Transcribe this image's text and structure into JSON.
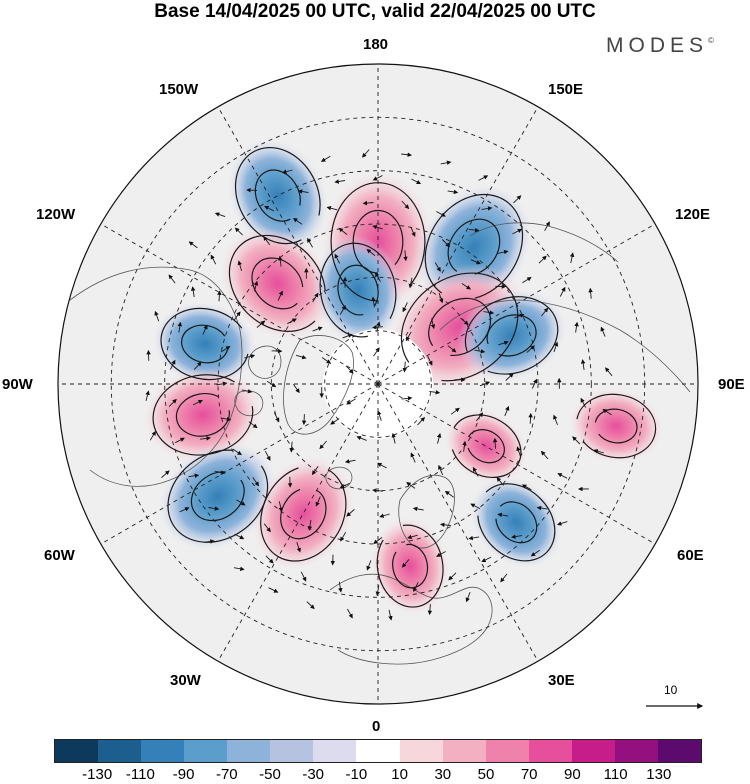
{
  "title": "Base 14/04/2025 00 UTC, valid 22/04/2025 00 UTC",
  "brand": "MODES",
  "brand_mark": "©",
  "meridian_labels": {
    "m180": "180",
    "m150w": "150W",
    "m150e": "150E",
    "m120w": "120W",
    "m120e": "120E",
    "m90w": "90W",
    "m90e": "90E",
    "m60w": "60W",
    "m60e": "60E",
    "m30w": "30W",
    "m30e": "30E",
    "m0": "0"
  },
  "reference_vector": {
    "label": "10",
    "value": 10
  },
  "colorbar": {
    "colors": [
      "#0d3a5c",
      "#1c5f8f",
      "#3580b8",
      "#5b9dcb",
      "#8eb3da",
      "#b6c3e0",
      "#dcdcee",
      "#ffffff",
      "#f7d6dc",
      "#f2b0c2",
      "#ee82ab",
      "#e54f9c",
      "#c71d8a",
      "#94107e",
      "#5c0a6e"
    ],
    "ticks": [
      "-130",
      "-110",
      "-90",
      "-70",
      "-50",
      "-30",
      "-10",
      "10",
      "30",
      "50",
      "70",
      "90",
      "110",
      "130"
    ]
  },
  "anomaly_centers": [
    {
      "lon": 180,
      "lat": 50,
      "value": 90
    },
    {
      "lon": 145,
      "lat": 43,
      "value": -80
    },
    {
      "lon": -152,
      "lat": 30,
      "value": -60
    },
    {
      "lon": -135,
      "lat": 50,
      "value": 70
    },
    {
      "lon": -168,
      "lat": 63,
      "value": -50
    },
    {
      "lon": 125,
      "lat": 62,
      "value": 100
    },
    {
      "lon": 110,
      "lat": 50,
      "value": -50
    },
    {
      "lon": -103,
      "lat": 40,
      "value": -40
    },
    {
      "lon": -80,
      "lat": 40,
      "value": 60
    },
    {
      "lon": -55,
      "lat": 35,
      "value": -70
    },
    {
      "lon": -30,
      "lat": 48,
      "value": 60
    },
    {
      "lon": 80,
      "lat": 22,
      "value": 25
    },
    {
      "lon": 45,
      "lat": 35,
      "value": -35
    },
    {
      "lon": 10,
      "lat": 38,
      "value": 30
    },
    {
      "lon": 60,
      "lat": 55,
      "value": 15
    }
  ]
}
